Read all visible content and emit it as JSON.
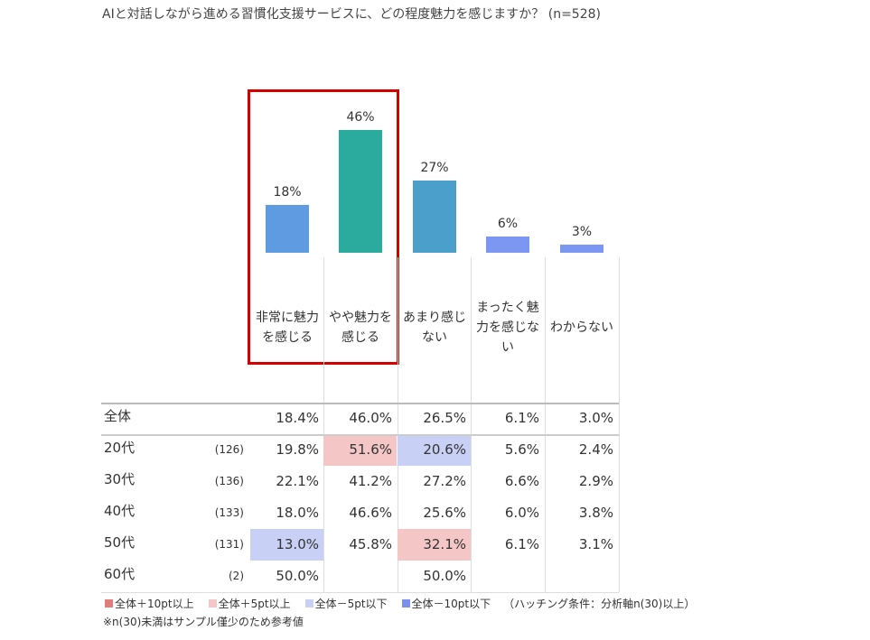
{
  "chart_data": {
    "type": "bar",
    "title": "AIと対話しながら進める習慣化支援サービスに、どの程度魅力を感じますか？ (n=528)",
    "categories": [
      "非常に魅力を感じる",
      "やや魅力を感じる",
      "あまり感じない",
      "まったく魅力を感じない",
      "わからない"
    ],
    "values": [
      18,
      46,
      27,
      6,
      3
    ],
    "value_labels": [
      "18%",
      "46%",
      "27%",
      "6%",
      "3%"
    ],
    "colors": [
      "#5e9be0",
      "#2aab9e",
      "#4aa0cb",
      "#7b97f2",
      "#7b97f2"
    ]
  },
  "table": {
    "rows": [
      {
        "label": "全体",
        "n": null,
        "cells": [
          "18.4%",
          "46.0%",
          "26.5%",
          "6.1%",
          "3.0%"
        ],
        "shading": [
          null,
          null,
          null,
          null,
          null
        ]
      },
      {
        "label": "20代",
        "n": "(126)",
        "cells": [
          "19.8%",
          "51.6%",
          "20.6%",
          "5.6%",
          "2.4%"
        ],
        "shading": [
          null,
          1,
          2,
          null,
          null
        ]
      },
      {
        "label": "30代",
        "n": "(136)",
        "cells": [
          "22.1%",
          "41.2%",
          "27.2%",
          "6.6%",
          "2.9%"
        ],
        "shading": [
          null,
          null,
          null,
          null,
          null
        ]
      },
      {
        "label": "40代",
        "n": "(133)",
        "cells": [
          "18.0%",
          "46.6%",
          "25.6%",
          "6.0%",
          "3.8%"
        ],
        "shading": [
          null,
          null,
          null,
          null,
          null
        ]
      },
      {
        "label": "50代",
        "n": "(131)",
        "cells": [
          "13.0%",
          "45.8%",
          "32.1%",
          "6.1%",
          "3.1%"
        ],
        "shading": [
          2,
          null,
          1,
          null,
          null
        ]
      },
      {
        "label": "60代",
        "n": "(2)",
        "cells": [
          "50.0%",
          null,
          "50.0%",
          null,
          null
        ],
        "shading": [
          null,
          null,
          null,
          null,
          null
        ]
      }
    ]
  },
  "legend": {
    "items": [
      {
        "label": "全体＋10pt以上",
        "color": "#e57b7b"
      },
      {
        "label": "全体＋5pt以上",
        "color": "#f4c6c6"
      },
      {
        "label": "全体－5pt以下",
        "color": "#c9d0f6"
      },
      {
        "label": "全体－10pt以下",
        "color": "#7b8ff0"
      }
    ],
    "condition": "（ハッチング条件：分析軸n(30)以上）",
    "note": "※n(30)未満はサンプル僅少のため参考値"
  }
}
